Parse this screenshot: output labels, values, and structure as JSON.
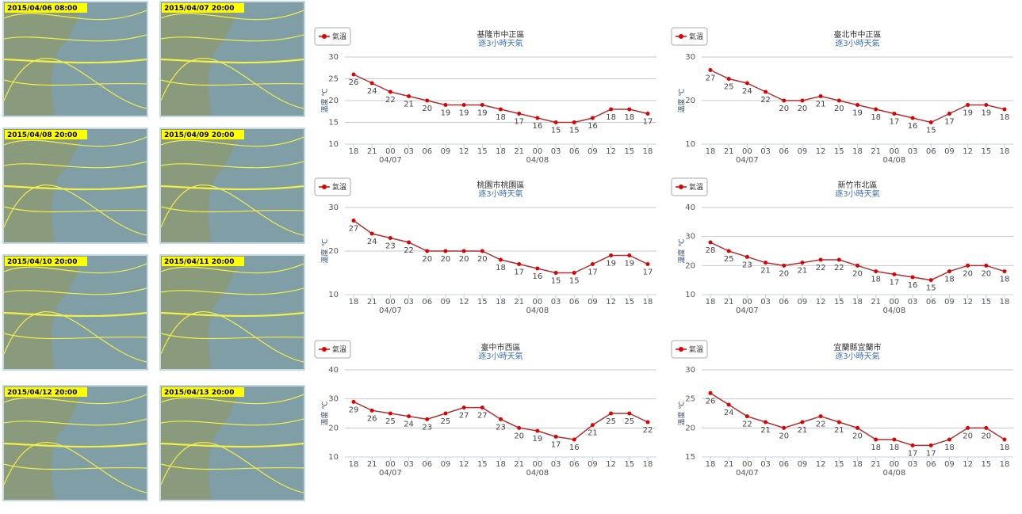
{
  "maps": [
    {
      "date": "2015/04/06 08:00"
    },
    {
      "date": "2015/04/07 20:00"
    },
    {
      "date": "2015/04/08 20:00"
    },
    {
      "date": "2015/04/09 20:00"
    },
    {
      "date": "2015/04/10 20:00"
    },
    {
      "date": "2015/04/11 20:00"
    },
    {
      "date": "2015/04/12 20:00"
    },
    {
      "date": "2015/04/13 20:00"
    }
  ],
  "chart_data": [
    {
      "type": "line",
      "title": "基隆市中正區",
      "subtitle": "逐3小時天氣",
      "ylabel": "溫度 ℃",
      "categories": [
        "18",
        "21",
        "00",
        "03",
        "06",
        "09",
        "12",
        "15",
        "18",
        "21",
        "00",
        "03",
        "06",
        "09",
        "12",
        "15",
        "18"
      ],
      "dates": [
        null,
        null,
        "04/07",
        null,
        null,
        null,
        null,
        null,
        null,
        null,
        "04/08",
        null,
        null,
        null,
        null,
        null,
        null
      ],
      "series": [
        {
          "name": "氣溫",
          "color": "#e00000",
          "values": [
            26,
            24,
            22,
            21,
            20,
            19,
            19,
            19,
            18,
            17,
            16,
            15,
            15,
            16,
            18,
            18,
            17
          ]
        }
      ],
      "ylim": [
        10,
        30
      ],
      "yticks": [
        10,
        15,
        20,
        25,
        30
      ],
      "grid": true
    },
    {
      "type": "line",
      "title": "臺北市中正區",
      "subtitle": "逐3小時天氣",
      "ylabel": "溫度 ℃",
      "categories": [
        "18",
        "21",
        "00",
        "03",
        "06",
        "09",
        "12",
        "15",
        "18",
        "21",
        "00",
        "03",
        "06",
        "09",
        "12",
        "15",
        "18"
      ],
      "dates": [
        null,
        null,
        "04/07",
        null,
        null,
        null,
        null,
        null,
        null,
        null,
        "04/08",
        null,
        null,
        null,
        null,
        null,
        null
      ],
      "series": [
        {
          "name": "氣溫",
          "color": "#e00000",
          "values": [
            27,
            25,
            24,
            22,
            20,
            20,
            21,
            20,
            19,
            18,
            17,
            16,
            15,
            17,
            19,
            19,
            18
          ]
        }
      ],
      "ylim": [
        10,
        30
      ],
      "yticks": [
        10,
        20,
        30
      ],
      "grid": true
    },
    {
      "type": "line",
      "title": "桃園市桃園區",
      "subtitle": "逐3小時天氣",
      "ylabel": "溫度 ℃",
      "categories": [
        "18",
        "21",
        "00",
        "03",
        "06",
        "09",
        "12",
        "15",
        "18",
        "21",
        "00",
        "03",
        "06",
        "09",
        "12",
        "15",
        "18"
      ],
      "dates": [
        null,
        null,
        "04/07",
        null,
        null,
        null,
        null,
        null,
        null,
        null,
        "04/08",
        null,
        null,
        null,
        null,
        null,
        null
      ],
      "series": [
        {
          "name": "氣溫",
          "color": "#e00000",
          "values": [
            27,
            24,
            23,
            22,
            20,
            20,
            20,
            20,
            18,
            17,
            16,
            15,
            15,
            17,
            19,
            19,
            17
          ]
        }
      ],
      "ylim": [
        10,
        30
      ],
      "yticks": [
        10,
        20,
        30
      ],
      "grid": true
    },
    {
      "type": "line",
      "title": "新竹市北區",
      "subtitle": "逐3小時天氣",
      "ylabel": "溫度 ℃",
      "categories": [
        "18",
        "21",
        "00",
        "03",
        "06",
        "09",
        "12",
        "15",
        "18",
        "21",
        "00",
        "03",
        "06",
        "09",
        "12",
        "15",
        "18"
      ],
      "dates": [
        null,
        null,
        "04/07",
        null,
        null,
        null,
        null,
        null,
        null,
        null,
        "04/08",
        null,
        null,
        null,
        null,
        null,
        null
      ],
      "series": [
        {
          "name": "氣溫",
          "color": "#e00000",
          "values": [
            28,
            25,
            23,
            21,
            20,
            21,
            22,
            22,
            20,
            18,
            17,
            16,
            15,
            18,
            20,
            20,
            18
          ]
        }
      ],
      "ylim": [
        10,
        40
      ],
      "yticks": [
        10,
        20,
        30,
        40
      ],
      "grid": true
    },
    {
      "type": "line",
      "title": "臺中市西區",
      "subtitle": "逐3小時天氣",
      "ylabel": "溫度 ℃",
      "categories": [
        "18",
        "21",
        "00",
        "03",
        "06",
        "09",
        "12",
        "15",
        "18",
        "21",
        "00",
        "03",
        "06",
        "09",
        "12",
        "15",
        "18"
      ],
      "dates": [
        null,
        null,
        "04/07",
        null,
        null,
        null,
        null,
        null,
        null,
        null,
        "04/08",
        null,
        null,
        null,
        null,
        null,
        null
      ],
      "series": [
        {
          "name": "氣溫",
          "color": "#e00000",
          "values": [
            29,
            26,
            25,
            24,
            23,
            25,
            27,
            27,
            23,
            20,
            19,
            17,
            16,
            21,
            25,
            25,
            22
          ]
        }
      ],
      "ylim": [
        10,
        40
      ],
      "yticks": [
        10,
        20,
        30,
        40
      ],
      "grid": true
    },
    {
      "type": "line",
      "title": "宜蘭縣宜蘭市",
      "subtitle": "逐3小時天氣",
      "ylabel": "溫度 ℃",
      "categories": [
        "18",
        "21",
        "00",
        "03",
        "06",
        "09",
        "12",
        "15",
        "18",
        "21",
        "00",
        "03",
        "06",
        "09",
        "12",
        "15",
        "18"
      ],
      "dates": [
        null,
        null,
        "04/07",
        null,
        null,
        null,
        null,
        null,
        null,
        null,
        "04/08",
        null,
        null,
        null,
        null,
        null,
        null
      ],
      "series": [
        {
          "name": "氣溫",
          "color": "#e00000",
          "values": [
            26,
            24,
            22,
            21,
            20,
            21,
            22,
            21,
            20,
            18,
            18,
            17,
            17,
            18,
            20,
            20,
            18
          ]
        }
      ],
      "ylim": [
        15,
        30
      ],
      "yticks": [
        15,
        20,
        25,
        30
      ],
      "grid": true
    }
  ]
}
